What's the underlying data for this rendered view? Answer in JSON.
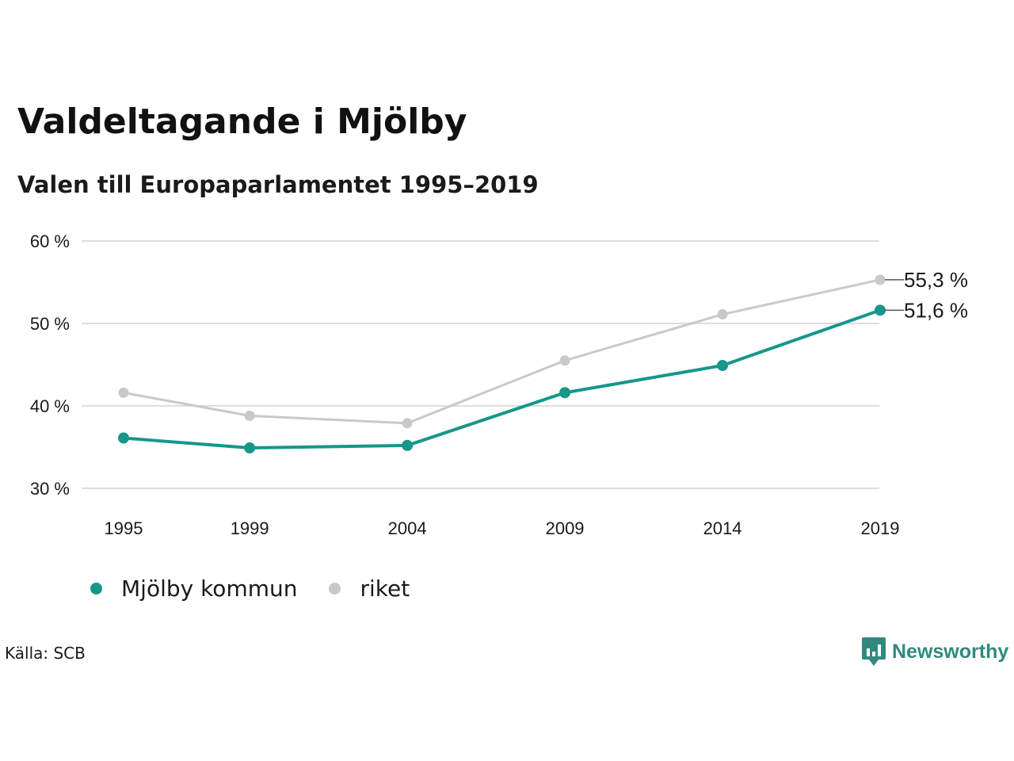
{
  "title": "Valdeltagande i Mjölby",
  "subtitle": "Valen till Europaparlamentet 1995–2019",
  "source": "Källa: SCB",
  "brand": "Newsworthy",
  "colors": {
    "accent": "#17968a",
    "secondary": "#c9c9c9",
    "grid": "#dddddd",
    "brand": "#2f8a7d"
  },
  "chart_data": {
    "type": "line",
    "title": "Valdeltagande i Mjölby",
    "subtitle": "Valen till Europaparlamentet 1995–2019",
    "categories": [
      "1995",
      "1999",
      "2004",
      "2009",
      "2014",
      "2019"
    ],
    "ylim": [
      30,
      60
    ],
    "yticks": [
      30,
      40,
      50,
      60
    ],
    "ytick_labels": [
      "30 %",
      "40 %",
      "50 %",
      "60 %"
    ],
    "grid": true,
    "legend_position": "bottom-left",
    "series": [
      {
        "name": "Mjölby kommun",
        "color": "#17968a",
        "values": [
          36.1,
          34.9,
          35.2,
          41.6,
          44.9,
          51.6
        ],
        "end_label": "51,6 %"
      },
      {
        "name": "riket",
        "color": "#c9c9c9",
        "values": [
          41.6,
          38.8,
          37.9,
          45.5,
          51.1,
          55.3
        ],
        "end_label": "55,3 %"
      }
    ]
  }
}
